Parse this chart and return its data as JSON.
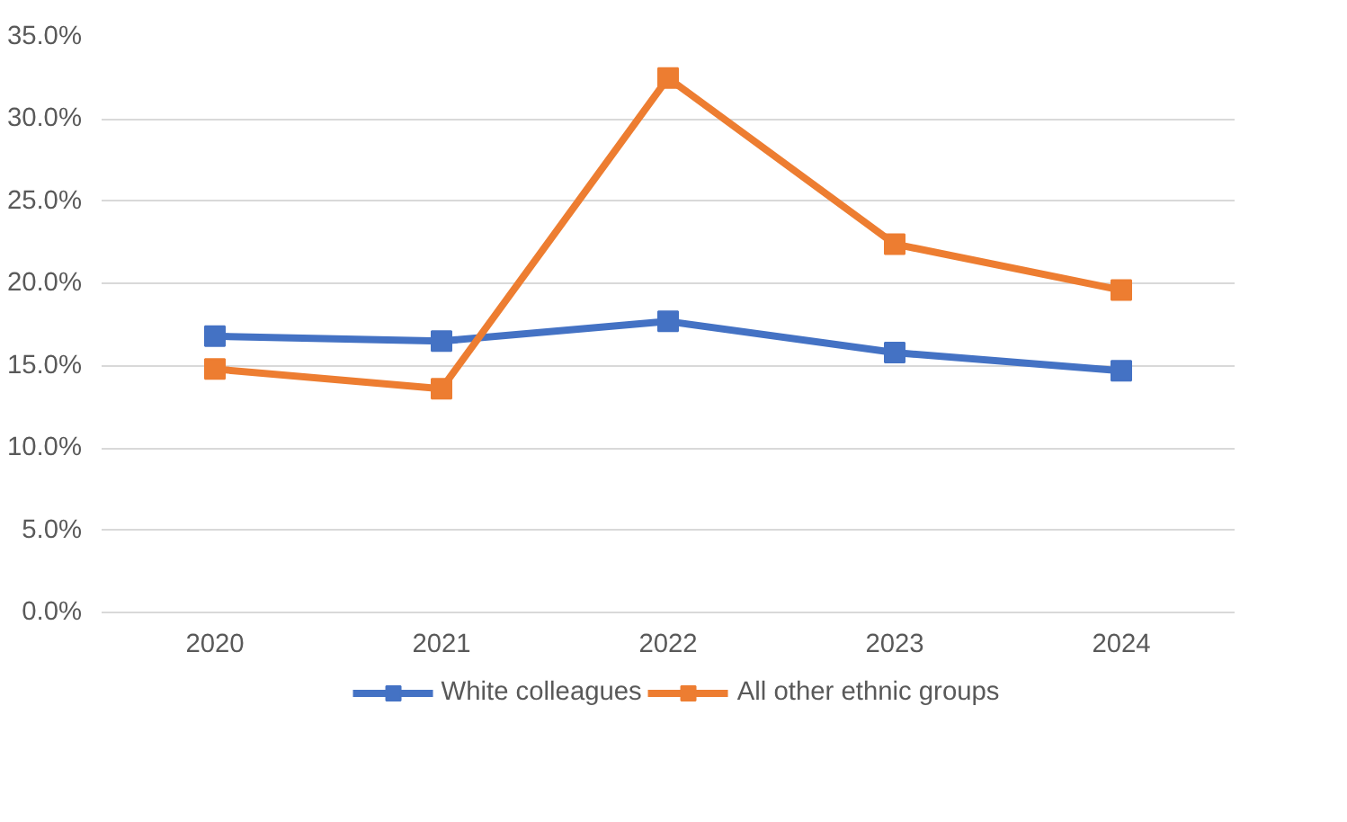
{
  "chart_data": {
    "type": "line",
    "categories": [
      "2020",
      "2021",
      "2022",
      "2023",
      "2024"
    ],
    "series": [
      {
        "name": "White colleagues",
        "color": "#4472c4",
        "values": [
          16.8,
          16.5,
          17.7,
          15.8,
          14.7
        ]
      },
      {
        "name": "All other ethnic groups",
        "color": "#ed7d31",
        "values": [
          14.8,
          13.6,
          32.5,
          22.4,
          19.6
        ]
      }
    ],
    "ylim": [
      0,
      35
    ],
    "yticks": [
      {
        "value": 0,
        "label": "0.0%"
      },
      {
        "value": 5,
        "label": "5.0%"
      },
      {
        "value": 10,
        "label": "10.0%"
      },
      {
        "value": 15,
        "label": "15.0%"
      },
      {
        "value": 20,
        "label": "20.0%"
      },
      {
        "value": 25,
        "label": "25.0%"
      },
      {
        "value": 30,
        "label": "30.0%"
      },
      {
        "value": 35,
        "label": "35.0%"
      }
    ],
    "grid": "y",
    "legend": "bottom",
    "marker": "square",
    "line_style": "solid"
  }
}
